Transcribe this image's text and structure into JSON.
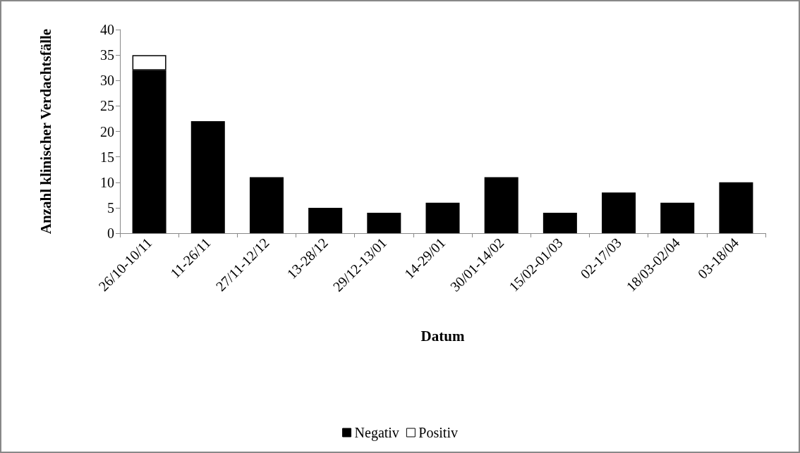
{
  "chart_data": {
    "type": "bar",
    "stacked": true,
    "xlabel": "Datum",
    "ylabel": "Anzahl klinischer Verdachtsfälle",
    "categories": [
      "26/10-10/11",
      "11-26/11",
      "27/11-12/12",
      "13-28/12",
      "29/12-13/01",
      "14-29/01",
      "30/01-14/02",
      "15/02-01/03",
      "02-17/03",
      "18/03-02/04",
      "03-18/04"
    ],
    "series": [
      {
        "name": "Negativ",
        "color": "#000000",
        "values": [
          32,
          22,
          11,
          5,
          4,
          6,
          11,
          4,
          8,
          6,
          10
        ]
      },
      {
        "name": "Positiv",
        "color": "#ffffff",
        "values": [
          3,
          0,
          0,
          0,
          0,
          0,
          0,
          0,
          0,
          0,
          0
        ]
      }
    ],
    "ylim": [
      0,
      40
    ],
    "yticks": [
      0,
      5,
      10,
      15,
      20,
      25,
      30,
      35,
      40
    ],
    "grid": false,
    "legend": "bottom"
  }
}
